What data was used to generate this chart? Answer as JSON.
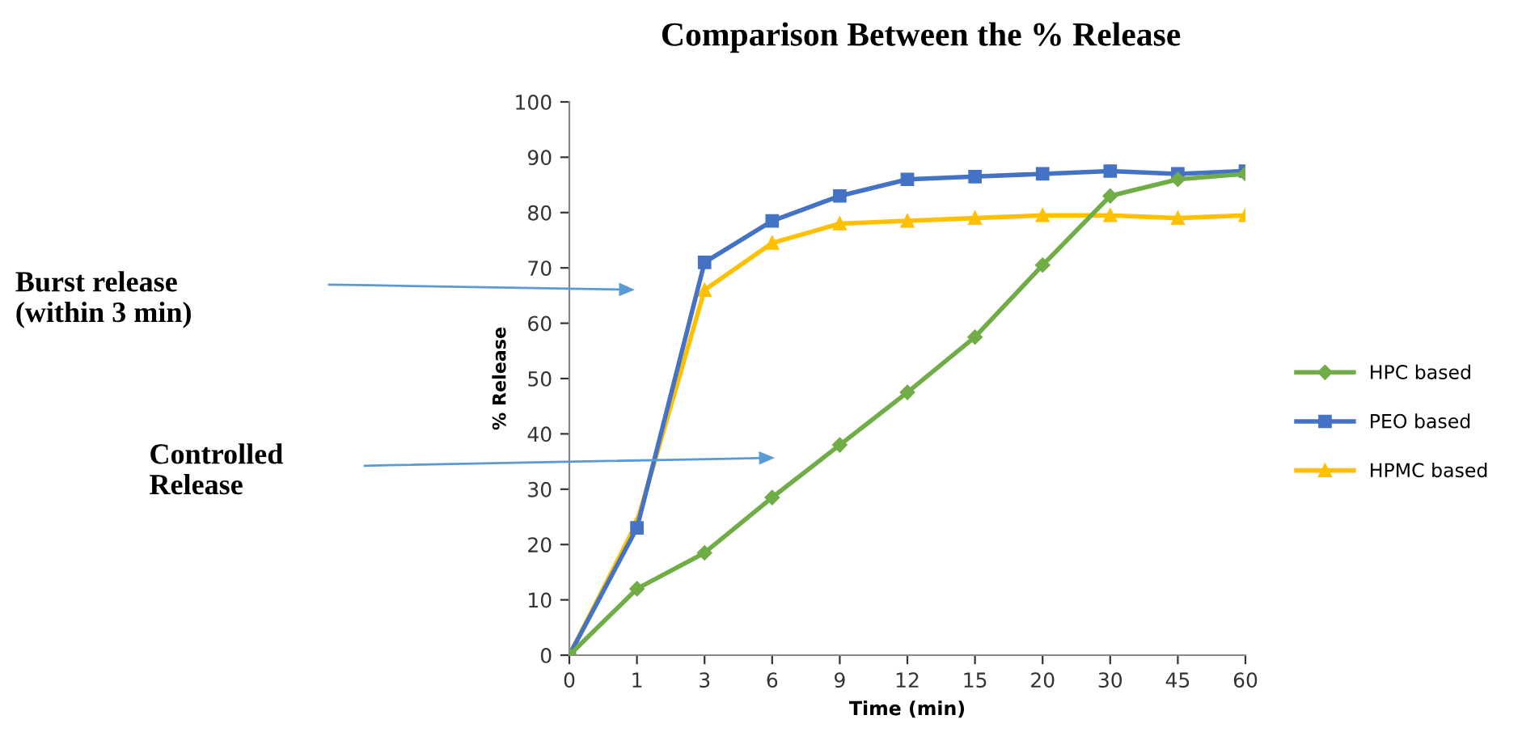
{
  "chart_data": {
    "type": "line",
    "title": "Comparison Between the % Release",
    "xlabel": "Time (min)",
    "ylabel": "% Release",
    "categories": [
      "0",
      "1",
      "3",
      "6",
      "9",
      "12",
      "15",
      "20",
      "30",
      "45",
      "60"
    ],
    "series": [
      {
        "name": "HPC based",
        "color": "#70ad47",
        "marker": "diamond",
        "values": [
          0,
          12,
          18.5,
          28.5,
          38,
          47.5,
          57.5,
          70.5,
          83,
          86,
          87
        ]
      },
      {
        "name": "PEO based",
        "color": "#4472c4",
        "marker": "square",
        "values": [
          0,
          23,
          71,
          78.5,
          83,
          86,
          86.5,
          87,
          87.5,
          87,
          87.5
        ]
      },
      {
        "name": "HPMC based",
        "color": "#ffc000",
        "marker": "triangle",
        "values": [
          0,
          24,
          66,
          74.5,
          78,
          78.5,
          79,
          79.5,
          79.5,
          79,
          79.5
        ]
      }
    ],
    "ylim": [
      0,
      100
    ],
    "yticks": [
      0,
      10,
      20,
      30,
      40,
      50,
      60,
      70,
      80,
      90,
      100
    ],
    "grid": false,
    "legend": "right",
    "annotations": [
      "Burst release\n(within 3 min)",
      "Controlled\nRelease"
    ]
  }
}
